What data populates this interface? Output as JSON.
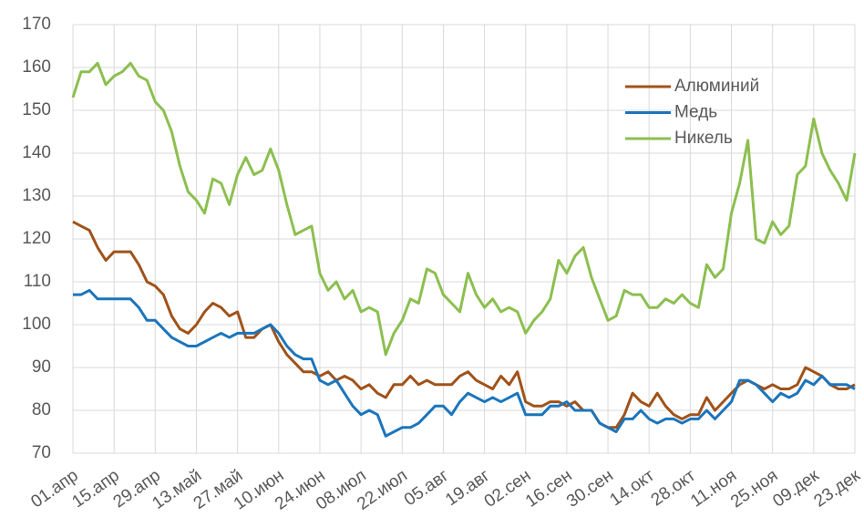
{
  "chart_data": {
    "type": "line",
    "categories": [
      "01.апр",
      null,
      null,
      null,
      null,
      "15.апр",
      null,
      null,
      null,
      null,
      "29.апр",
      null,
      null,
      null,
      null,
      "13.май",
      null,
      null,
      null,
      null,
      "27.май",
      null,
      null,
      null,
      null,
      "10.июн",
      null,
      null,
      null,
      null,
      "24.июн",
      null,
      null,
      null,
      null,
      "08.июл",
      null,
      null,
      null,
      null,
      "22.июл",
      null,
      null,
      null,
      null,
      "05.авг",
      null,
      null,
      null,
      null,
      "19.авг",
      null,
      null,
      null,
      null,
      "02.сен",
      null,
      null,
      null,
      null,
      "16.сен",
      null,
      null,
      null,
      null,
      "30.сен",
      null,
      null,
      null,
      null,
      "14.окт",
      null,
      null,
      null,
      null,
      "28.окт",
      null,
      null,
      null,
      null,
      "11.ноя",
      null,
      null,
      null,
      null,
      "25.ноя",
      null,
      null,
      null,
      null,
      "09.дек",
      null,
      null,
      null,
      null,
      "23.дек"
    ],
    "series": [
      {
        "name": "Алюминий",
        "color": "#a0521a",
        "values": [
          124,
          123,
          122,
          118,
          115,
          117,
          117,
          117,
          114,
          110,
          109,
          107,
          102,
          99,
          98,
          100,
          103,
          105,
          104,
          102,
          103,
          97,
          97,
          99,
          100,
          96,
          93,
          91,
          89,
          89,
          88,
          89,
          87,
          88,
          87,
          85,
          86,
          84,
          83,
          86,
          86,
          88,
          86,
          87,
          86,
          86,
          86,
          88,
          89,
          87,
          86,
          85,
          88,
          86,
          89,
          82,
          81,
          81,
          82,
          82,
          81,
          82,
          80,
          80,
          77,
          76,
          76,
          79,
          84,
          82,
          81,
          84,
          81,
          79,
          78,
          79,
          79,
          83,
          80,
          82,
          84,
          86,
          87,
          86,
          85,
          86,
          85,
          85,
          86,
          90,
          89,
          88,
          86,
          85,
          85,
          86
        ]
      },
      {
        "name": "Медь",
        "color": "#1b75bc",
        "values": [
          107,
          107,
          108,
          106,
          106,
          106,
          106,
          106,
          104,
          101,
          101,
          99,
          97,
          96,
          95,
          95,
          96,
          97,
          98,
          97,
          98,
          98,
          98,
          99,
          100,
          98,
          95,
          93,
          92,
          92,
          87,
          86,
          87,
          84,
          81,
          79,
          80,
          79,
          74,
          75,
          76,
          76,
          77,
          79,
          81,
          81,
          79,
          82,
          84,
          83,
          82,
          83,
          82,
          83,
          84,
          79,
          79,
          79,
          81,
          81,
          82,
          80,
          80,
          80,
          77,
          76,
          75,
          78,
          78,
          80,
          78,
          77,
          78,
          78,
          77,
          78,
          78,
          80,
          78,
          80,
          82,
          87,
          87,
          86,
          84,
          82,
          84,
          83,
          84,
          87,
          86,
          88,
          86,
          86,
          86,
          85
        ]
      },
      {
        "name": "Никель",
        "color": "#8cbf4f",
        "values": [
          153,
          159,
          159,
          161,
          156,
          158,
          159,
          161,
          158,
          157,
          152,
          150,
          145,
          137,
          131,
          129,
          126,
          134,
          133,
          128,
          135,
          139,
          135,
          136,
          141,
          136,
          128,
          121,
          122,
          123,
          112,
          108,
          110,
          106,
          108,
          103,
          104,
          103,
          93,
          98,
          101,
          106,
          105,
          113,
          112,
          107,
          105,
          103,
          112,
          107,
          104,
          106,
          103,
          104,
          103,
          98,
          101,
          103,
          106,
          115,
          112,
          116,
          118,
          111,
          106,
          101,
          102,
          108,
          107,
          107,
          104,
          104,
          106,
          105,
          107,
          105,
          104,
          114,
          111,
          113,
          126,
          133,
          143,
          120,
          119,
          124,
          121,
          123,
          135,
          137,
          148,
          140,
          136,
          133,
          129,
          140
        ]
      }
    ],
    "ylim": [
      70,
      170
    ],
    "yticks": [
      70,
      80,
      90,
      100,
      110,
      120,
      130,
      140,
      150,
      160,
      170
    ],
    "grid": true
  }
}
